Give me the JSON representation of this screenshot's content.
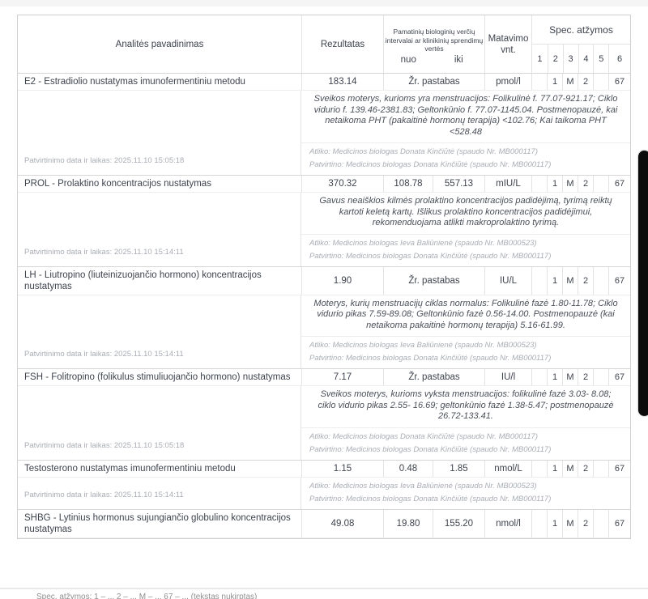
{
  "table": {
    "headers": {
      "analyte": "Analitės pavadinimas",
      "result": "Rezultatas",
      "range_line1": "Pamatinių biologinių verčių",
      "range_line2": "intervalai ar klinikinių sprendimų",
      "range_line3": "vertės",
      "nuo": "nuo",
      "iki": "iki",
      "unit": "Matavimo vnt.",
      "spec": "Spec. atžymos"
    },
    "spec_numbers": [
      "1",
      "2",
      "3",
      "4",
      "5",
      "6"
    ],
    "rows": [
      {
        "name": "E2 - Estradiolio nustatymas imunofermentiniu metodu",
        "result": "183.14",
        "range_merged": true,
        "range_text": "Žr. pastabas",
        "unit": "pmol/l",
        "spec": [
          "",
          "1",
          "M",
          "2",
          "",
          "67"
        ],
        "note": "Sveikos moterys, kurioms yra menstruacijos: Folikulinė f. 77.07-921.17; Ciklo vidurio f. 139.46-2381.83; Geltonkūnio f. 77.07-1145.04. Postmenopauzė, kai netaikoma PHT (pakaitinė hormonų terapija) <102.76; Kai taikoma PHT <528.48",
        "confirmed": "Patvirtinimo data ir laikas: 2025.11.10 15:05:18",
        "atliko": "Atliko: Medicinos biologas Donata Kinčiūtė (spaudo Nr. MB000117)",
        "patvirtino": "Patvirtino: Medicinos biologas Donata Kinčiūtė (spaudo Nr. MB000117)"
      },
      {
        "name": "PROL - Prolaktino koncentracijos nustatymas",
        "result": "370.32",
        "range_merged": false,
        "nuo": "108.78",
        "iki": "557.13",
        "unit": "mIU/L",
        "spec": [
          "",
          "1",
          "M",
          "2",
          "",
          "67"
        ],
        "note": "Gavus neaiškios kilmės prolaktino koncentracijos padidėjimą, tyrimą reiktų kartoti keletą kartų. Išlikus prolaktino koncentracijos padidėjimui, rekomenduojama atlikti makroprolaktino tyrimą.",
        "confirmed": "Patvirtinimo data ir laikas: 2025.11.10 15:14:11",
        "atliko": "Atliko: Medicinos biologas Ieva Baliūnienė (spaudo Nr. MB000523)",
        "patvirtino": "Patvirtino: Medicinos biologas Donata Kinčiūtė (spaudo Nr. MB000117)"
      },
      {
        "name": "LH - Liutropino (liuteinizuojančio hormono) koncentracijos nustatymas",
        "result": "1.90",
        "range_merged": true,
        "range_text": "Žr. pastabas",
        "unit": "IU/L",
        "spec": [
          "",
          "1",
          "M",
          "2",
          "",
          "67"
        ],
        "note": "Moterys, kurių menstruacijų ciklas normalus: Folikulinė fazė 1.80-11.78; Ciklo vidurio pikas 7.59-89.08; Geltonkūnio fazė 0.56-14.00. Postmenopauzė (kai netaikoma pakaitinė hormonų terapija) 5.16-61.99.",
        "confirmed": "Patvirtinimo data ir laikas: 2025.11.10 15:14:11",
        "atliko": "Atliko: Medicinos biologas Ieva Baliūnienė (spaudo Nr. MB000523)",
        "patvirtino": "Patvirtino: Medicinos biologas Donata Kinčiūtė (spaudo Nr. MB000117)"
      },
      {
        "name": "FSH - Folitropino (folikulus stimuliuojančio hormono) nustatymas",
        "result": "7.17",
        "range_merged": true,
        "range_text": "Žr. pastabas",
        "unit": "IU/l",
        "spec": [
          "",
          "1",
          "M",
          "2",
          "",
          "67"
        ],
        "note": "Sveikos moterys, kurioms vyksta menstruacijos: folikulinė fazė 3.03- 8.08; ciklo vidurio pikas 2.55- 16.69; geltonkūnio fazė 1.38-5.47; postmenopauzė 26.72-133.41.",
        "confirmed": "Patvirtinimo data ir laikas: 2025.11.10 15:05:18",
        "atliko": "Atliko: Medicinos biologas Donata Kinčiūtė (spaudo Nr. MB000117)",
        "patvirtino": "Patvirtino: Medicinos biologas Donata Kinčiūtė (spaudo Nr. MB000117)"
      },
      {
        "name": "Testosterono nustatymas imunofermentiniu metodu",
        "result": "1.15",
        "range_merged": false,
        "nuo": "0.48",
        "iki": "1.85",
        "unit": "nmol/L",
        "spec": [
          "",
          "1",
          "M",
          "2",
          "",
          "67"
        ],
        "note": null,
        "confirmed": "Patvirtinimo data ir laikas: 2025.11.10 15:14:11",
        "atliko": "Atliko: Medicinos biologas Ieva Baliūnienė (spaudo Nr. MB000523)",
        "patvirtino": "Patvirtino: Medicinos biologas Donata Kinčiūtė (spaudo Nr. MB000117)"
      },
      {
        "name": "SHBG - Lytinius hormonus sujungiančio globulino koncentracijos nustatymas",
        "result": "49.08",
        "range_merged": false,
        "nuo": "19.80",
        "iki": "155.20",
        "unit": "nmol/l",
        "spec": [
          "",
          "1",
          "M",
          "2",
          "",
          "67"
        ],
        "note": null,
        "confirmed": null,
        "atliko": null,
        "patvirtino": null
      }
    ]
  },
  "footer": {
    "partial_text": "Spec. atžymos: 1 – ...   2 – ...   M – ...   67 – ...   (tekstas nukirptas)"
  },
  "colors": {
    "text": "#3e434e",
    "muted": "#a9adb4",
    "note_text": "#4a4f59",
    "border": "#e3e3e3",
    "border_strong": "#d6d6d6",
    "scroll_thumb": "#0b0b0b"
  }
}
